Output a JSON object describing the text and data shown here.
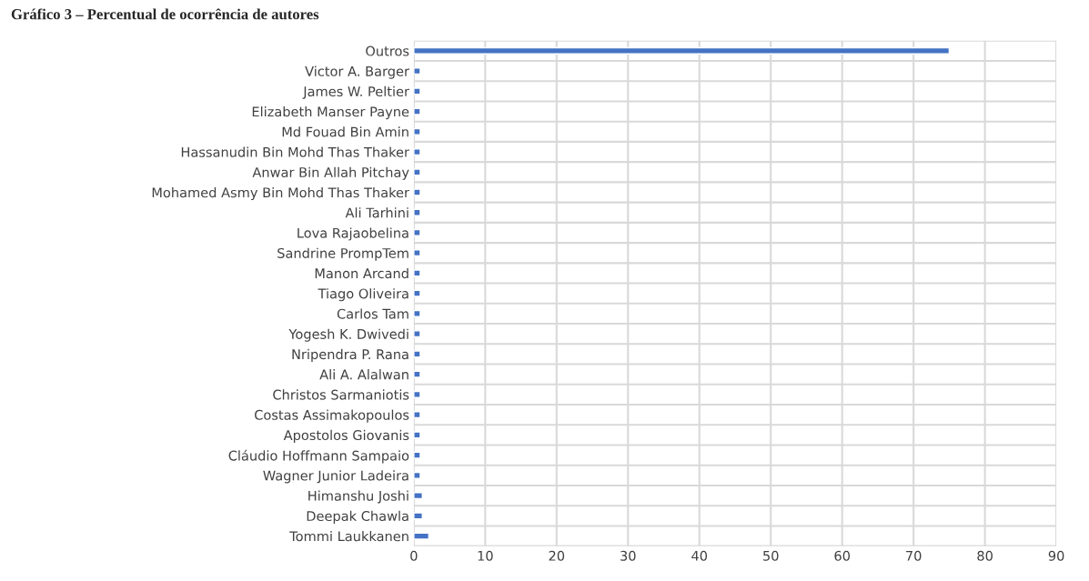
{
  "chart_data": {
    "type": "bar",
    "orientation": "horizontal",
    "title": "Gráfico 3 – Percentual de ocorrência de autores",
    "categories": [
      "Outros",
      "Victor A. Barger",
      "James W. Peltier",
      "Elizabeth Manser Payne",
      "Md Fouad Bin Amin",
      "Hassanudin Bin Mohd Thas Thaker",
      "Anwar Bin Allah Pitchay",
      "Mohamed Asmy Bin Mohd Thas Thaker",
      "Ali Tarhini",
      "Lova Rajaobelina",
      "Sandrine PrompTem",
      "Manon Arcand",
      "Tiago Oliveira",
      "Carlos Tam",
      "Yogesh K. Dwivedi",
      "Nripendra P. Rana",
      "Ali A. Alalwan",
      "Christos Sarmaniotis",
      "Costas Assimakopoulos",
      "Apostolos Giovanis",
      "Cláudio Hoffmann Sampaio",
      "Wagner Junior Ladeira",
      "Himanshu Joshi",
      "Deepak Chawla",
      "Tommi Laukkanen"
    ],
    "values": [
      75,
      0.9,
      0.9,
      0.9,
      0.9,
      0.9,
      0.9,
      0.9,
      0.9,
      0.9,
      0.9,
      0.9,
      0.9,
      0.9,
      0.9,
      0.9,
      0.9,
      0.9,
      0.9,
      0.9,
      0.9,
      0.9,
      1.2,
      1.2,
      2.1
    ],
    "color": "#4472c4",
    "xlim": [
      0,
      90
    ],
    "xticks": [
      0,
      10,
      20,
      30,
      40,
      50,
      60,
      70,
      80,
      90
    ],
    "grid": true
  }
}
